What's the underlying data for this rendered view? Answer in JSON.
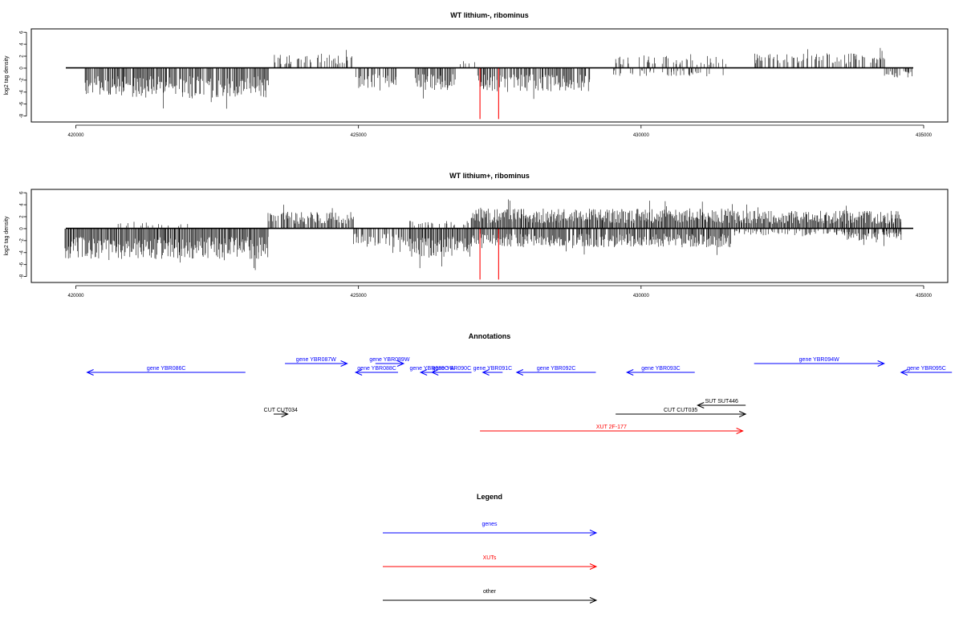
{
  "colors": {
    "gene": "#0000ff",
    "xut": "#ff0000",
    "other": "#000000",
    "signal": "#000000"
  },
  "chart_data": [
    {
      "type": "bar",
      "title": "WT lithium-, ribominus",
      "ylabel": "log2 tag density",
      "xlim": [
        419800,
        434800
      ],
      "ylim": [
        -8,
        6
      ],
      "x_ticks": [
        "420000",
        "425000",
        "430000",
        "435000"
      ],
      "y_ticks": [
        "6",
        "4",
        "2",
        "0",
        "-2",
        "-4",
        "-6",
        "-8"
      ],
      "grid": false,
      "profile_segments": [
        {
          "start": 420150,
          "end": 423400,
          "sign": -1,
          "mean": 3.8,
          "density": 0.85
        },
        {
          "start": 423500,
          "end": 424900,
          "sign": 1,
          "mean": 1.8,
          "density": 0.45
        },
        {
          "start": 424950,
          "end": 425700,
          "sign": -1,
          "mean": 2.6,
          "density": 0.6
        },
        {
          "start": 426000,
          "end": 426700,
          "sign": -1,
          "mean": 2.8,
          "density": 0.75
        },
        {
          "start": 426700,
          "end": 427050,
          "sign": 1,
          "mean": 1.2,
          "density": 0.25
        },
        {
          "start": 427100,
          "end": 429100,
          "sign": -1,
          "mean": 3.0,
          "density": 0.8
        },
        {
          "start": 429500,
          "end": 431500,
          "sign": 1,
          "mean": 1.6,
          "density": 0.35
        },
        {
          "start": 429500,
          "end": 431500,
          "sign": -1,
          "mean": 1.0,
          "density": 0.25
        },
        {
          "start": 432000,
          "end": 434300,
          "sign": 1,
          "mean": 1.9,
          "density": 0.45
        },
        {
          "start": 434300,
          "end": 434800,
          "sign": -1,
          "mean": 1.2,
          "density": 0.5
        }
      ],
      "highlight_bars": [
        {
          "x": 427150,
          "y": -8.5
        },
        {
          "x": 427480,
          "y": -8.5
        }
      ]
    },
    {
      "type": "bar",
      "title": "WT lithium+, ribominus",
      "ylabel": "log2 tag density",
      "xlim": [
        419800,
        434800
      ],
      "ylim": [
        -8,
        6
      ],
      "x_ticks": [
        "420000",
        "425000",
        "430000",
        "435000"
      ],
      "y_ticks": [
        "6",
        "4",
        "2",
        "0",
        "-2",
        "-4",
        "-6",
        "-8"
      ],
      "grid": false,
      "profile_segments": [
        {
          "start": 419800,
          "end": 423400,
          "sign": -1,
          "mean": 3.9,
          "density": 1.0
        },
        {
          "start": 420500,
          "end": 422000,
          "sign": 1,
          "mean": 0.9,
          "density": 0.12
        },
        {
          "start": 423400,
          "end": 424900,
          "sign": 1,
          "mean": 2.2,
          "density": 0.75
        },
        {
          "start": 424900,
          "end": 425900,
          "sign": -1,
          "mean": 2.4,
          "density": 0.7
        },
        {
          "start": 425900,
          "end": 427000,
          "sign": -1,
          "mean": 3.6,
          "density": 1.0
        },
        {
          "start": 425900,
          "end": 427000,
          "sign": 1,
          "mean": 1.0,
          "density": 0.3
        },
        {
          "start": 427000,
          "end": 431600,
          "sign": 1,
          "mean": 2.6,
          "density": 1.0
        },
        {
          "start": 427000,
          "end": 431600,
          "sign": -1,
          "mean": 2.4,
          "density": 0.9
        },
        {
          "start": 431600,
          "end": 434600,
          "sign": 1,
          "mean": 2.3,
          "density": 1.0
        },
        {
          "start": 431600,
          "end": 434600,
          "sign": -1,
          "mean": 0.9,
          "density": 0.35
        },
        {
          "start": 433600,
          "end": 434600,
          "sign": -1,
          "mean": 1.6,
          "density": 0.55
        }
      ],
      "highlight_bars": [
        {
          "x": 427150,
          "y": -8.5
        },
        {
          "x": 427480,
          "y": -8.5
        }
      ]
    },
    {
      "type": "table",
      "title": "Annotations",
      "features": [
        {
          "label": "gene YBR086C",
          "start": 420200,
          "end": 423000,
          "strand": "-",
          "category": "gene",
          "row": 1
        },
        {
          "label": "gene YBR087W",
          "start": 423700,
          "end": 424800,
          "strand": "+",
          "category": "gene",
          "row": 0
        },
        {
          "label": "gene YBR088C",
          "start": 424950,
          "end": 425700,
          "strand": "-",
          "category": "gene",
          "row": 1
        },
        {
          "label": "gene YBR089W",
          "start": 425300,
          "end": 425800,
          "strand": "+",
          "category": "gene",
          "row": 0
        },
        {
          "label": "gene YBR089C-A",
          "start": 426100,
          "end": 426500,
          "strand": "-",
          "category": "gene",
          "row": 1
        },
        {
          "label": "gene YBR090C",
          "start": 426300,
          "end": 427000,
          "strand": "-",
          "category": "gene",
          "row": 1
        },
        {
          "label": "gene YBR091C",
          "start": 427200,
          "end": 427550,
          "strand": "-",
          "category": "gene",
          "row": 1
        },
        {
          "label": "gene YBR092C",
          "start": 427800,
          "end": 429200,
          "strand": "-",
          "category": "gene",
          "row": 1
        },
        {
          "label": "gene YBR093C",
          "start": 429750,
          "end": 430950,
          "strand": "-",
          "category": "gene",
          "row": 1
        },
        {
          "label": "gene YBR094W",
          "start": 432000,
          "end": 434300,
          "strand": "+",
          "category": "gene",
          "row": 0
        },
        {
          "label": "gene YBR095C",
          "start": 434600,
          "end": 435500,
          "strand": "-",
          "category": "gene",
          "row": 1
        },
        {
          "label": "SUT SUT446",
          "start": 431000,
          "end": 431850,
          "strand": "-",
          "category": "other",
          "row": 3
        },
        {
          "label": "CUT CUT034",
          "start": 423500,
          "end": 423750,
          "strand": "+",
          "category": "other",
          "row": 4
        },
        {
          "label": "CUT CUT035",
          "start": 429550,
          "end": 431850,
          "strand": "+",
          "category": "other",
          "row": 4
        },
        {
          "label": "XUT 2F-177",
          "start": 427150,
          "end": 431800,
          "strand": "+",
          "category": "xut",
          "row": 6
        }
      ]
    }
  ],
  "legend": {
    "title": "Legend",
    "items": [
      {
        "label": "genes",
        "color": "#0000ff"
      },
      {
        "label": "XUTs",
        "color": "#ff0000"
      },
      {
        "label": "other",
        "color": "#000000"
      }
    ]
  }
}
